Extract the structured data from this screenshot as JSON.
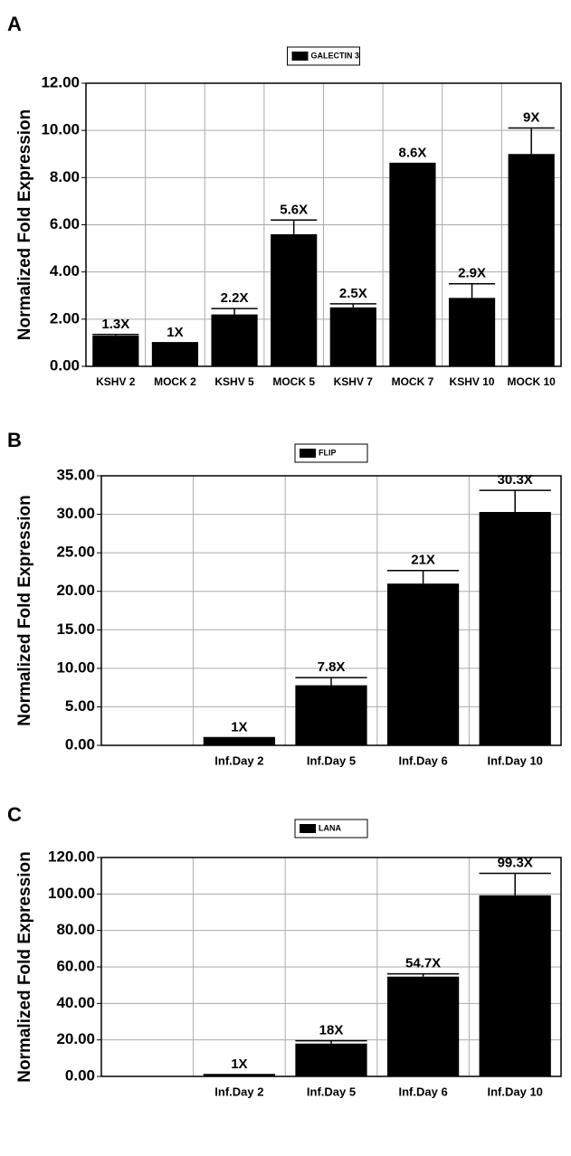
{
  "chart_data": [
    {
      "type": "bar",
      "panel": "A",
      "ylabel": "Normalized Fold Expression",
      "categories": [
        "KSHV 2",
        "MOCK 2",
        "KSHV 5",
        "MOCK 5",
        "KSHV 7",
        "MOCK 7",
        "KSHV 10",
        "MOCK 10"
      ],
      "series": [
        {
          "name": "GALECTIN 3",
          "color": "#000000",
          "values": [
            1.3,
            1.0,
            2.2,
            5.6,
            2.5,
            8.6,
            2.9,
            9.0
          ],
          "errors": [
            0.05,
            0.0,
            0.25,
            0.6,
            0.15,
            0.0,
            0.6,
            1.1
          ],
          "value_labels": [
            "1.3X",
            "1X",
            "2.2X",
            "5.6X",
            "2.5X",
            "8.6X",
            "2.9X",
            "9X"
          ]
        }
      ],
      "ylim": [
        0,
        12
      ],
      "yticks": [
        {
          "value": 0,
          "label": "0.00"
        },
        {
          "value": 2,
          "label": "2.00"
        },
        {
          "value": 4,
          "label": "4.00"
        },
        {
          "value": 6,
          "label": "6.00"
        },
        {
          "value": 8,
          "label": "8.00"
        },
        {
          "value": 10,
          "label": "10.00"
        },
        {
          "value": 12,
          "label": "12.00"
        }
      ],
      "grid": true
    },
    {
      "type": "bar",
      "panel": "B",
      "ylabel": "Normalized Fold Expression",
      "categories": [
        null,
        "Inf.Day 2",
        "Inf.Day 5",
        "Inf.Day 6",
        "Inf.Day 10"
      ],
      "series": [
        {
          "name": "FLIP",
          "color": "#000000",
          "values": [
            null,
            1.0,
            7.8,
            21.0,
            30.3
          ],
          "errors": [
            null,
            0.0,
            1.0,
            1.7,
            2.8
          ],
          "value_labels": [
            null,
            "1X",
            "7.8X",
            "21X",
            "30.3X"
          ]
        }
      ],
      "ylim": [
        0,
        35
      ],
      "yticks": [
        {
          "value": 0,
          "label": "0.00"
        },
        {
          "value": 5,
          "label": "5.00"
        },
        {
          "value": 10,
          "label": "10.00"
        },
        {
          "value": 15,
          "label": "15.00"
        },
        {
          "value": 20,
          "label": "20.00"
        },
        {
          "value": 25,
          "label": "25.00"
        },
        {
          "value": 30,
          "label": "30.00"
        },
        {
          "value": 35,
          "label": "35.00"
        }
      ],
      "grid": true
    },
    {
      "type": "bar",
      "panel": "C",
      "ylabel": "Normalized Fold Expression",
      "categories": [
        null,
        "Inf.Day 2",
        "Inf.Day 5",
        "Inf.Day 6",
        "Inf.Day 10"
      ],
      "series": [
        {
          "name": "LANA",
          "color": "#000000",
          "values": [
            null,
            1.0,
            18.0,
            54.7,
            99.3
          ],
          "errors": [
            null,
            0.0,
            1.5,
            1.5,
            12.0
          ],
          "value_labels": [
            null,
            "1X",
            "18X",
            "54.7X",
            "99.3X"
          ]
        }
      ],
      "ylim": [
        0,
        120
      ],
      "yticks": [
        {
          "value": 0,
          "label": "0.00"
        },
        {
          "value": 20,
          "label": "20.00"
        },
        {
          "value": 40,
          "label": "40.00"
        },
        {
          "value": 60,
          "label": "60.00"
        },
        {
          "value": 80,
          "label": "80.00"
        },
        {
          "value": 100,
          "label": "100.00"
        },
        {
          "value": 120,
          "label": "120.00"
        }
      ],
      "grid": true
    }
  ]
}
